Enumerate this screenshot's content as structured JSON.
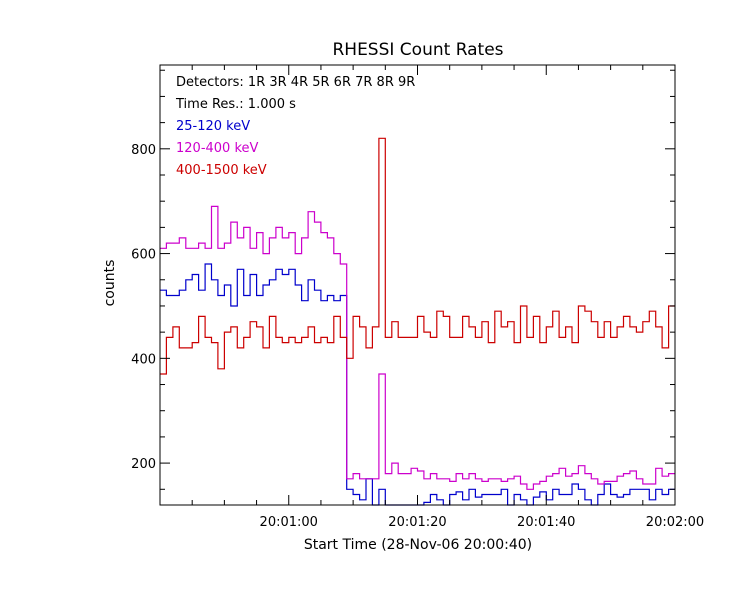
{
  "chart_data": {
    "type": "line",
    "title": "RHESSI Count Rates",
    "xlabel": "Start Time (28-Nov-06 20:00:40)",
    "ylabel": "counts",
    "x_unit": "seconds since 20:00:40",
    "xlim": [
      0,
      80
    ],
    "ylim": [
      120,
      960
    ],
    "x_ticks": [
      {
        "value": 20,
        "label": "20:01:00"
      },
      {
        "value": 40,
        "label": "20:01:20"
      },
      {
        "value": 60,
        "label": "20:01:40"
      },
      {
        "value": 80,
        "label": "20:02:00"
      }
    ],
    "y_ticks": [
      {
        "value": 200,
        "label": "200"
      },
      {
        "value": 400,
        "label": "400"
      },
      {
        "value": 600,
        "label": "600"
      },
      {
        "value": 800,
        "label": "800"
      }
    ],
    "annotations": [
      "Detectors:  1R 3R 4R 5R 6R 7R 8R 9R",
      "Time Res.: 1.000 s"
    ],
    "legend_placement": "top-left",
    "grid": false,
    "series": [
      {
        "name": "25-120 keV",
        "color": "#0000cc",
        "values": [
          530,
          520,
          520,
          530,
          550,
          560,
          530,
          580,
          550,
          520,
          540,
          500,
          570,
          520,
          560,
          520,
          540,
          550,
          570,
          560,
          570,
          540,
          510,
          550,
          530,
          510,
          520,
          510,
          520,
          150,
          140,
          130,
          170,
          120,
          150,
          110,
          105,
          120,
          120,
          110,
          120,
          125,
          140,
          130,
          120,
          140,
          145,
          130,
          150,
          135,
          140,
          140,
          140,
          150,
          120,
          140,
          130,
          110,
          135,
          145,
          130,
          150,
          140,
          140,
          160,
          150,
          130,
          120,
          140,
          160,
          140,
          135,
          140,
          150,
          150,
          150,
          130,
          150,
          140,
          150
        ]
      },
      {
        "name": "120-400 keV",
        "color": "#cc00cc",
        "values": [
          610,
          620,
          620,
          630,
          610,
          610,
          620,
          610,
          690,
          610,
          620,
          660,
          630,
          650,
          610,
          640,
          600,
          630,
          650,
          630,
          640,
          600,
          630,
          680,
          660,
          640,
          630,
          600,
          580,
          170,
          180,
          170,
          170,
          170,
          370,
          180,
          200,
          180,
          180,
          190,
          185,
          170,
          180,
          170,
          170,
          165,
          180,
          170,
          180,
          170,
          165,
          170,
          170,
          165,
          170,
          175,
          160,
          150,
          160,
          165,
          175,
          180,
          190,
          175,
          180,
          195,
          180,
          170,
          160,
          165,
          165,
          175,
          180,
          185,
          170,
          160,
          160,
          190,
          175,
          180
        ]
      },
      {
        "name": "400-1500 keV",
        "color": "#cc0000",
        "values": [
          370,
          440,
          460,
          420,
          420,
          430,
          480,
          440,
          430,
          380,
          450,
          460,
          420,
          440,
          470,
          460,
          420,
          480,
          440,
          430,
          440,
          430,
          440,
          460,
          430,
          440,
          430,
          480,
          440,
          400,
          480,
          460,
          420,
          460,
          820,
          440,
          470,
          440,
          440,
          440,
          480,
          450,
          440,
          490,
          480,
          440,
          440,
          480,
          460,
          440,
          470,
          430,
          490,
          460,
          470,
          430,
          500,
          440,
          480,
          430,
          460,
          490,
          440,
          460,
          430,
          500,
          490,
          470,
          440,
          470,
          440,
          460,
          480,
          460,
          450,
          470,
          490,
          460,
          420,
          500
        ]
      }
    ]
  }
}
